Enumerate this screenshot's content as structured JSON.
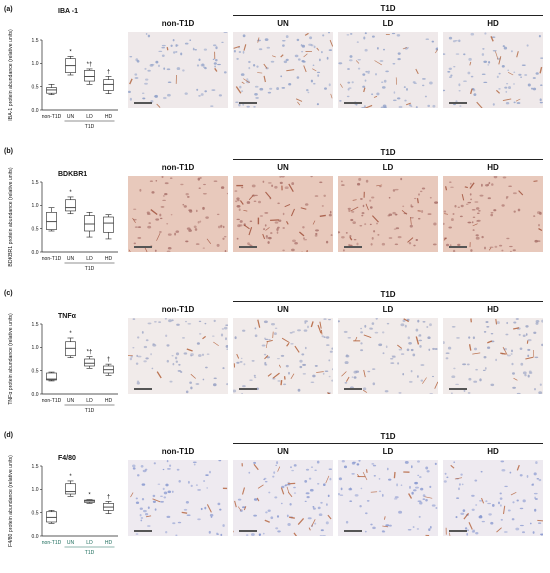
{
  "panels": [
    {
      "label": "(a)",
      "title": "IBA -1",
      "ylabel": "IBA-1 protein abundance (relative units)",
      "group_header": "T1D",
      "columns": [
        "non-T1D",
        "UN",
        "LD",
        "HD"
      ],
      "tint": "#8fa0c8",
      "stain": "#b0623a",
      "background": "#efe9ea",
      "chart_data": {
        "type": "box",
        "categories": [
          "non-T1D",
          "UN",
          "LD",
          "HD"
        ],
        "group_label": "T1D",
        "ylim": [
          0,
          1.5
        ],
        "yticks": [
          "0.0",
          "0.5",
          "1.0",
          "1.5"
        ],
        "boxes": [
          {
            "min": 0.33,
            "q1": 0.36,
            "median": 0.43,
            "q3": 0.48,
            "max": 0.55
          },
          {
            "min": 0.75,
            "q1": 0.8,
            "median": 0.95,
            "q3": 1.1,
            "max": 1.15
          },
          {
            "min": 0.55,
            "q1": 0.62,
            "median": 0.72,
            "q3": 0.85,
            "max": 0.88
          },
          {
            "min": 0.35,
            "q1": 0.42,
            "median": 0.55,
            "q3": 0.65,
            "max": 0.72
          }
        ],
        "annotations": [
          "",
          "*",
          "*†",
          "†"
        ]
      }
    },
    {
      "label": "(b)",
      "title": "BDKBR1",
      "ylabel": "BDKBR1 protein abundance (relative units)",
      "group_header": "T1D",
      "columns": [
        "non-T1D",
        "UN",
        "LD",
        "HD"
      ],
      "tint": "#a8706a",
      "stain": "#9c4a34",
      "background": "#e8c9bc",
      "chart_data": {
        "type": "box",
        "categories": [
          "non-T1D",
          "UN",
          "LD",
          "HD"
        ],
        "group_label": "T1D",
        "ylim": [
          0,
          1.5
        ],
        "yticks": [
          "0.0",
          "0.5",
          "1.0",
          "1.5"
        ],
        "boxes": [
          {
            "min": 0.45,
            "q1": 0.48,
            "median": 0.65,
            "q3": 0.85,
            "max": 0.95
          },
          {
            "min": 0.82,
            "q1": 0.88,
            "median": 0.95,
            "q3": 1.12,
            "max": 1.18
          },
          {
            "min": 0.32,
            "q1": 0.45,
            "median": 0.6,
            "q3": 0.78,
            "max": 0.85
          },
          {
            "min": 0.28,
            "q1": 0.42,
            "median": 0.62,
            "q3": 0.75,
            "max": 0.8
          }
        ],
        "annotations": [
          "",
          "*",
          "",
          ""
        ]
      }
    },
    {
      "label": "(c)",
      "title": "TNFα",
      "ylabel": "TNFα protein abundance (relative units)",
      "group_header": "T1D",
      "columns": [
        "non-T1D",
        "UN",
        "LD",
        "HD"
      ],
      "tint": "#9aa3c4",
      "stain": "#b0582e",
      "background": "#f1ebea",
      "chart_data": {
        "type": "box",
        "categories": [
          "non-T1D",
          "UN",
          "LD",
          "HD"
        ],
        "group_label": "T1D",
        "ylim": [
          0,
          1.5
        ],
        "yticks": [
          "0.0",
          "0.5",
          "1.0",
          "1.5"
        ],
        "boxes": [
          {
            "min": 0.28,
            "q1": 0.3,
            "median": 0.32,
            "q3": 0.45,
            "max": 0.47
          },
          {
            "min": 0.78,
            "q1": 0.82,
            "median": 0.98,
            "q3": 1.12,
            "max": 1.2
          },
          {
            "min": 0.55,
            "q1": 0.6,
            "median": 0.66,
            "q3": 0.75,
            "max": 0.8
          },
          {
            "min": 0.4,
            "q1": 0.45,
            "median": 0.52,
            "q3": 0.6,
            "max": 0.64
          }
        ],
        "annotations": [
          "",
          "*",
          "*†",
          "†"
        ]
      }
    },
    {
      "label": "(d)",
      "title": "F4/80",
      "ylabel": "F4/80 protein abundance (relative units)",
      "group_header": "T1D",
      "columns": [
        "non-T1D",
        "UN",
        "LD",
        "HD"
      ],
      "tint": "#8a9ad0",
      "stain": "#b4613a",
      "background": "#eeeaf0",
      "chart_data": {
        "type": "box",
        "categories": [
          "non-T1D",
          "UN",
          "LD",
          "HD"
        ],
        "group_label": "T1D",
        "ylim": [
          0,
          1.5
        ],
        "yticks": [
          "0.0",
          "0.5",
          "1.0",
          "1.5"
        ],
        "boxes": [
          {
            "min": 0.27,
            "q1": 0.3,
            "median": 0.4,
            "q3": 0.52,
            "max": 0.55
          },
          {
            "min": 0.85,
            "q1": 0.9,
            "median": 0.95,
            "q3": 1.12,
            "max": 1.18
          },
          {
            "min": 0.7,
            "q1": 0.72,
            "median": 0.75,
            "q3": 0.77,
            "max": 0.78
          },
          {
            "min": 0.48,
            "q1": 0.55,
            "median": 0.62,
            "q3": 0.7,
            "max": 0.74
          }
        ],
        "annotations": [
          "",
          "*",
          "*",
          "†"
        ]
      }
    }
  ]
}
